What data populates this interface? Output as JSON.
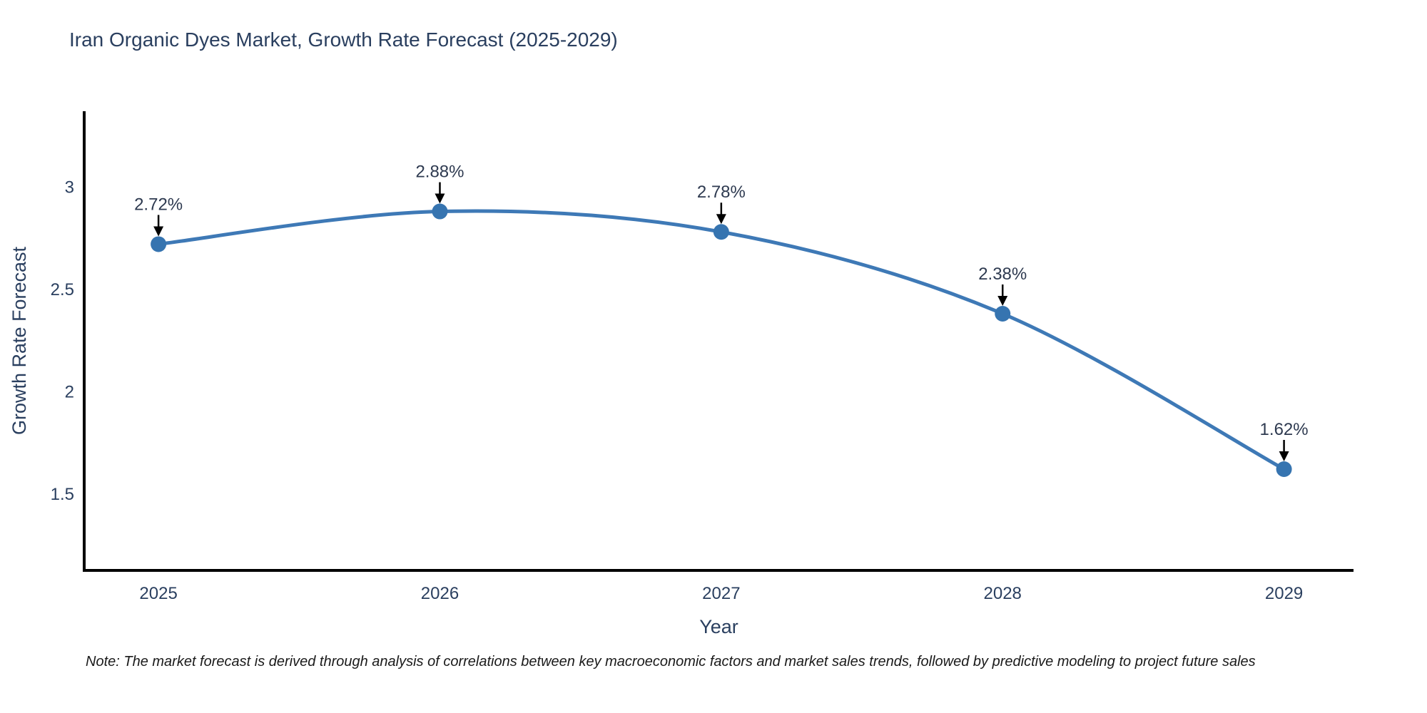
{
  "title": "Iran Organic Dyes Market, Growth Rate Forecast (2025-2029)",
  "note": "Note: The market forecast is derived through analysis of correlations between key macroeconomic factors and market sales trends, followed by predictive modeling to project future sales",
  "chart_data": {
    "type": "line",
    "title": "Iran Organic Dyes Market, Growth Rate Forecast (2025-2029)",
    "xlabel": "Year",
    "ylabel": "Growth Rate Forecast",
    "x": [
      2025,
      2026,
      2027,
      2028,
      2029
    ],
    "y": [
      2.72,
      2.88,
      2.78,
      2.38,
      1.62
    ],
    "point_labels": [
      "2.72%",
      "2.88%",
      "2.78%",
      "2.38%",
      "1.62%"
    ],
    "xticks": [
      2025,
      2026,
      2027,
      2028,
      2029
    ],
    "xtick_labels": [
      "2025",
      "2026",
      "2027",
      "2028",
      "2029"
    ],
    "yticks": [
      1.5,
      2,
      2.5,
      3
    ],
    "ytick_labels": [
      "1.5",
      "2",
      "2.5",
      "3"
    ],
    "xlim": [
      2024.736,
      2029.247
    ],
    "ylim": [
      1.125,
      3.37
    ],
    "grid": false,
    "legend": "none",
    "line_shape": "spline",
    "annotation_style": "label-above-with-down-arrow",
    "colors": {
      "line": "#3e79b6",
      "marker": "#3674b0",
      "axis": "#000000",
      "chart_text": "#2a3f5f",
      "annotation_text": "#2e3a50",
      "annotation_arrow": "#000000",
      "note_text": "#1a1a1a",
      "background": "#ffffff"
    }
  }
}
